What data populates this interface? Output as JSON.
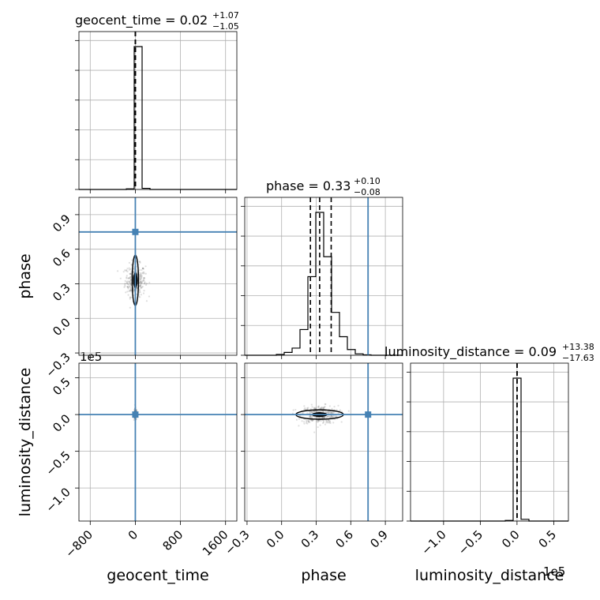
{
  "chart_data": {
    "type": "corner",
    "parameters": [
      "geocent_time",
      "phase",
      "luminosity_distance"
    ],
    "titles": [
      {
        "main": "geocent_time = 0.02",
        "upper": "+1.07",
        "lower": "−1.05"
      },
      {
        "main": "phase = 0.33",
        "upper": "+0.10",
        "lower": "−0.08"
      },
      {
        "main": "luminosity_distance = 0.09",
        "upper": "+13.38",
        "lower": "−17.63"
      }
    ],
    "axis_labels": {
      "x": [
        "geocent_time",
        "phase",
        "luminosity_distance"
      ],
      "y": [
        "phase",
        "luminosity_distance"
      ]
    },
    "ranges": {
      "geocent_time": [
        -1000,
        1800
      ],
      "phase": [
        -0.32,
        1.05
      ],
      "luminosity_distance": [
        -145000,
        70000
      ]
    },
    "ticks": {
      "geocent_time": [
        -800,
        0,
        800,
        1600
      ],
      "phase": [
        -0.3,
        0.0,
        0.3,
        0.6,
        0.9
      ],
      "luminosity_distance_y": [
        -1.0,
        -0.5,
        0.0,
        0.5
      ],
      "luminosity_distance_x": [
        -1.0,
        -0.5,
        0.0,
        0.5
      ]
    },
    "tick_labels": {
      "geocent_time": [
        "−800",
        "0",
        "800",
        "1600"
      ],
      "phase": [
        "−0.3",
        "0.0",
        "0.3",
        "0.6",
        "0.9"
      ],
      "luminosity_distance": [
        "−1.0",
        "−0.5",
        "0.0",
        "0.5"
      ]
    },
    "offset_text": "1e5",
    "truths": {
      "geocent_time": 0,
      "phase": 0.75,
      "luminosity_distance": 0
    },
    "quantiles": {
      "geocent_time": [
        -1.03,
        0.02,
        1.09
      ],
      "phase": [
        0.25,
        0.33,
        0.43
      ],
      "luminosity_distance": [
        -17.5,
        0.09,
        13.5
      ]
    },
    "histograms": {
      "geocent_time": {
        "edges": [
          -1000,
          -860,
          -720,
          -580,
          -440,
          -300,
          -160,
          -20,
          120,
          260,
          400,
          540,
          680,
          820,
          960,
          1100,
          1240,
          1380,
          1520,
          1660,
          1800
        ],
        "counts": [
          0,
          0,
          0,
          0,
          0,
          0,
          0.004,
          1.0,
          0.008,
          0,
          0,
          0,
          0,
          0,
          0,
          0,
          0,
          0,
          0,
          0
        ]
      },
      "phase": {
        "edges": [
          -0.32,
          -0.2515,
          -0.183,
          -0.1145,
          -0.046,
          0.0225,
          0.091,
          0.1595,
          0.228,
          0.2965,
          0.365,
          0.4335,
          0.502,
          0.5705,
          0.639,
          0.7075,
          0.776,
          0.8445,
          0.913,
          0.9815,
          1.05
        ],
        "counts": [
          0,
          0,
          0,
          0,
          0.006,
          0.02,
          0.05,
          0.18,
          0.55,
          1.0,
          0.69,
          0.3,
          0.13,
          0.04,
          0.01,
          0.003,
          0,
          0,
          0,
          0
        ]
      },
      "luminosity_distance": {
        "edges": [
          -145000,
          -134250,
          -123500,
          -112750,
          -102000,
          -91250,
          -80500,
          -69750,
          -59000,
          -48250,
          -37500,
          -26750,
          -16000,
          -5250,
          5500,
          16250,
          27000,
          37750,
          48500,
          59250,
          70000
        ],
        "counts": [
          0,
          0,
          0,
          0,
          0,
          0,
          0,
          0,
          0,
          0,
          0,
          0,
          0.004,
          1.0,
          0.012,
          0,
          0,
          0,
          0,
          0
        ]
      }
    },
    "grid": true,
    "colors": {
      "truth": "#4682b4",
      "hist": "#000000",
      "scatter": "#808080",
      "grid": "#b0b0b0"
    }
  }
}
